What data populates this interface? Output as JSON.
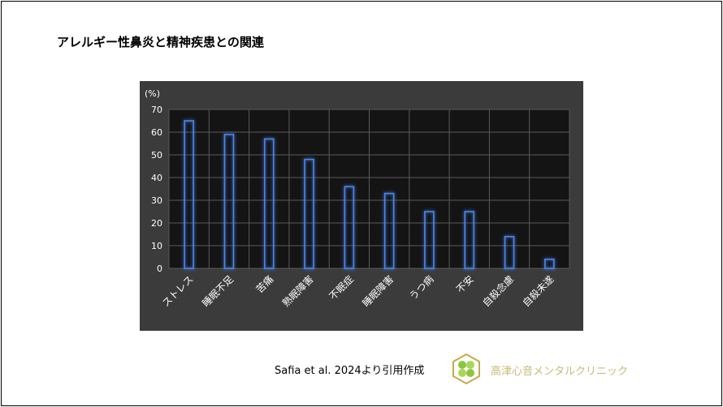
{
  "title": "アレルギー性鼻炎と精神疾患との関連",
  "chart_data": {
    "type": "bar",
    "unit_label": "(%)",
    "categories": [
      "ストレス",
      "睡眠不足",
      "苦痛",
      "熟眠障害",
      "不眠症",
      "睡眠障害",
      "うつ病",
      "不安",
      "自殺念慮",
      "自殺未遂"
    ],
    "values": [
      65,
      59,
      57,
      48,
      36,
      33,
      25,
      25,
      14,
      4
    ],
    "ylim": [
      0,
      70
    ],
    "yticks": [
      0,
      10,
      20,
      30,
      40,
      50,
      60,
      70
    ],
    "grid": true,
    "colors": {
      "background": "#3b3b3b",
      "plot": "#141414",
      "bar_outline": "#4a86f0",
      "grid": "#5a5a5a",
      "text": "#ffffff"
    }
  },
  "citation": "Safia et al. 2024より引用作成",
  "clinic_name": "高津心音メンタルクリニック"
}
